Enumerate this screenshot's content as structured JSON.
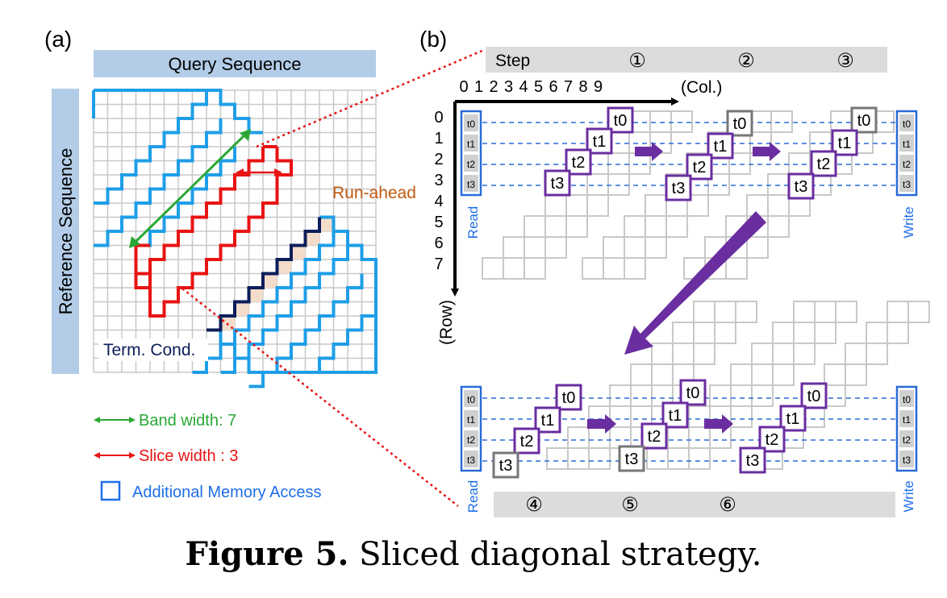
{
  "panel_a": {
    "label": "(a)",
    "query_label": "Query Sequence",
    "reference_label": "Reference Sequence",
    "run_ahead_label": "Run-ahead",
    "term_cond_label": "Term. Cond.",
    "legend": {
      "band_width": "Band width: 7",
      "slice_width": "Slice width : 3",
      "additional_memory": "Additional Memory Access"
    },
    "colors": {
      "band": "#2aa835",
      "slice": "#e81313",
      "memory": "#1e9ee8",
      "runahead": "#c05a10",
      "term": "#0c1e5a"
    }
  },
  "panel_b": {
    "label": "(b)",
    "step_label": "Step",
    "steps_top": [
      "①",
      "②",
      "③"
    ],
    "steps_bottom": [
      "④",
      "⑤",
      "⑥"
    ],
    "col_label": "(Col.)",
    "row_label": "(Row)",
    "col_ticks": [
      "0",
      "1",
      "2",
      "3",
      "4",
      "5",
      "6",
      "7",
      "8",
      "9"
    ],
    "row_ticks": [
      "0",
      "1",
      "2",
      "3",
      "4",
      "5",
      "6",
      "7"
    ],
    "threads": [
      "t0",
      "t1",
      "t2",
      "t3"
    ],
    "read_label": "Read",
    "write_label": "Write",
    "colors": {
      "thread": "#6a2ea0",
      "idle": "#777777",
      "dash": "#2a6ad8"
    }
  },
  "caption": {
    "bold": "Figure 5.",
    "text": " Sliced diagonal strategy."
  }
}
